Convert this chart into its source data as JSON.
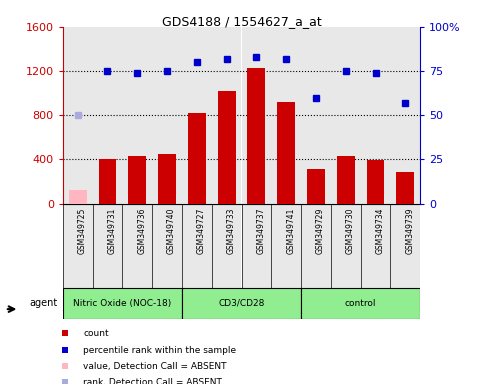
{
  "title": "GDS4188 / 1554627_a_at",
  "samples": [
    "GSM349725",
    "GSM349731",
    "GSM349736",
    "GSM349740",
    "GSM349727",
    "GSM349733",
    "GSM349737",
    "GSM349741",
    "GSM349729",
    "GSM349730",
    "GSM349734",
    "GSM349739"
  ],
  "bar_values": [
    120,
    400,
    430,
    450,
    820,
    1020,
    1230,
    920,
    310,
    430,
    390,
    290
  ],
  "bar_absent": [
    true,
    false,
    false,
    false,
    false,
    false,
    false,
    false,
    false,
    false,
    false,
    false
  ],
  "percentile_values": [
    50,
    75,
    74,
    75,
    80,
    82,
    83,
    82,
    60,
    75,
    74,
    57
  ],
  "percentile_absent": [
    true,
    false,
    false,
    false,
    false,
    false,
    false,
    false,
    false,
    false,
    false,
    false
  ],
  "ylim_left": [
    0,
    1600
  ],
  "ylim_right": [
    0,
    100
  ],
  "yticks_left": [
    0,
    400,
    800,
    1200,
    1600
  ],
  "ytick_labels_left": [
    "0",
    "400",
    "800",
    "1200",
    "1600"
  ],
  "yticks_right": [
    0,
    25,
    50,
    75,
    100
  ],
  "ytick_labels_right": [
    "0",
    "25",
    "50",
    "75",
    "100%"
  ],
  "groups": [
    {
      "label": "Nitric Oxide (NOC-18)",
      "start": 0,
      "end": 4
    },
    {
      "label": "CD3/CD28",
      "start": 4,
      "end": 8
    },
    {
      "label": "control",
      "start": 8,
      "end": 12
    }
  ],
  "group_color": "#90EE90",
  "bar_color": "#CC0000",
  "bar_absent_color": "#FFB6C1",
  "dot_color": "#0000CC",
  "dot_absent_color": "#AAAADD",
  "left_axis_color": "#CC0000",
  "right_axis_color": "#0000CC",
  "background_plot": "#FFFFFF",
  "col_bg_color": "#D3D3D3",
  "grid_color": "black",
  "grid_linestyle": "dotted",
  "grid_linewidth": 0.8,
  "grid_yvals": [
    400,
    800,
    1200
  ],
  "bar_width": 0.6,
  "dot_markersize": 5,
  "legend_items": [
    {
      "label": "count",
      "color": "#CC0000"
    },
    {
      "label": "percentile rank within the sample",
      "color": "#0000CC"
    },
    {
      "label": "value, Detection Call = ABSENT",
      "color": "#FFB6C1"
    },
    {
      "label": "rank, Detection Call = ABSENT",
      "color": "#AAAADD"
    }
  ]
}
